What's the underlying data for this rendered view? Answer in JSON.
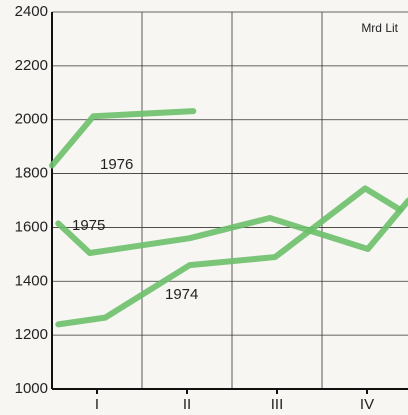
{
  "chart_data": {
    "type": "line",
    "unit_label": "Mrd Lit",
    "xlim": [
      0,
      4
    ],
    "xticks": [
      {
        "value": 0.5,
        "label": "I"
      },
      {
        "value": 1.5,
        "label": "II"
      },
      {
        "value": 2.5,
        "label": "III"
      },
      {
        "value": 3.5,
        "label": "IV"
      }
    ],
    "ylim": [
      1000,
      2400
    ],
    "yticks": [
      1000,
      1200,
      1400,
      1600,
      1800,
      2000,
      2200,
      2400
    ],
    "grid": true,
    "series": [
      {
        "name": "1976",
        "color": "#6cc06a",
        "x": [
          0,
          0.46,
          1.57
        ],
        "values": [
          1830,
          2013,
          2032
        ]
      },
      {
        "name": "1975",
        "color": "#6cc06a",
        "x": [
          0.07,
          0.42,
          1.53,
          2.42,
          3.51,
          3.96
        ],
        "values": [
          1615,
          1505,
          1560,
          1635,
          1520,
          1700
        ]
      },
      {
        "name": "1974",
        "color": "#6cc06a",
        "x": [
          0.07,
          0.59,
          1.53,
          2.48,
          3.48,
          3.87
        ],
        "values": [
          1240,
          1265,
          1460,
          1490,
          1745,
          1665
        ]
      }
    ]
  }
}
